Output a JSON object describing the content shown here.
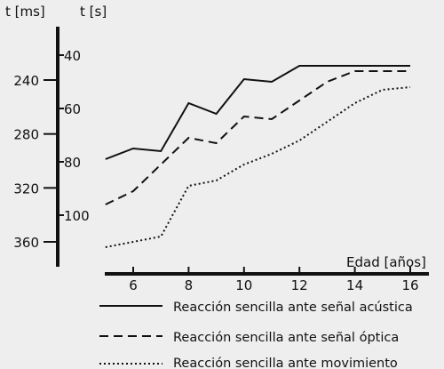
{
  "chart_data": {
    "type": "line",
    "xlabel": "Edad [años]",
    "ylabel_ms": "t [ms]",
    "ylabel_s": "t [s]",
    "x_ticks": [
      6,
      8,
      10,
      12,
      14,
      16
    ],
    "x_tick_labels": [
      "6",
      "8",
      "10",
      "12",
      "14",
      "16"
    ],
    "y_ms_ticks": [
      240,
      280,
      320,
      360
    ],
    "y_ms_tick_labels": [
      "240",
      "280",
      "320",
      "360"
    ],
    "y_s_ticks": [
      40,
      60,
      80,
      100
    ],
    "y_s_tick_labels": [
      "40",
      "60",
      "80",
      "100"
    ],
    "xlim": [
      4.5,
      16.5
    ],
    "ylim_s": [
      19,
      113
    ],
    "y_direction": "inverted",
    "grid": false,
    "legend_position": "bottom",
    "series": [
      {
        "name": "Reacción sencilla ante señal acústica",
        "style": "solid",
        "x": [
          5,
          6,
          7,
          8,
          9,
          10,
          11,
          12,
          13,
          14,
          15,
          16
        ],
        "y": [
          79,
          75,
          76,
          58,
          62,
          49,
          50,
          44,
          44,
          44,
          44,
          44
        ]
      },
      {
        "name": "Reacción sencilla ante señal óptica",
        "style": "dashed",
        "x": [
          5,
          6,
          7,
          8,
          9,
          10,
          11,
          12,
          13,
          14,
          15,
          16
        ],
        "y": [
          96,
          91,
          81,
          71,
          73,
          63,
          64,
          57,
          50,
          46,
          46,
          46
        ]
      },
      {
        "name": "Reacción sencilla ante movimiento",
        "style": "dotted",
        "x": [
          5,
          6,
          7,
          8,
          9,
          10,
          11,
          12,
          13,
          14,
          15,
          16
        ],
        "y": [
          112,
          110,
          108,
          89,
          87,
          81,
          77,
          72,
          65,
          58,
          53,
          52
        ]
      }
    ]
  },
  "colors": {
    "line": "#111111",
    "background": "#eeeeee"
  }
}
